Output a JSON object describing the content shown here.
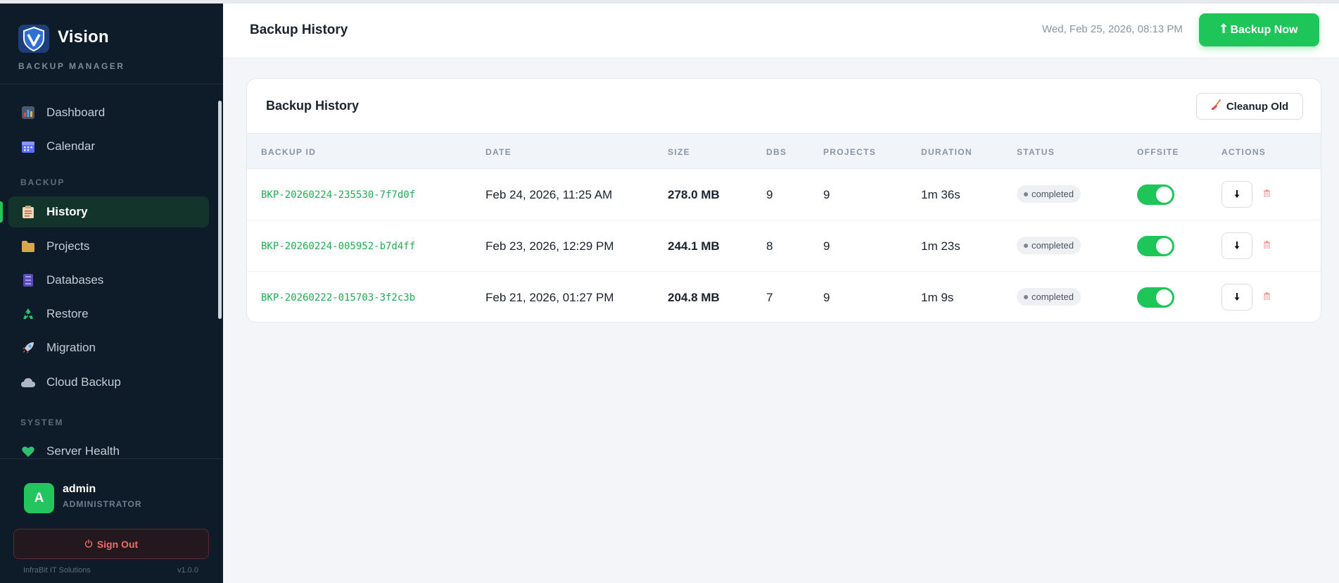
{
  "brand": {
    "name": "Vision",
    "subtitle": "BACKUP MANAGER",
    "logo_icon": "shield-v-icon"
  },
  "sidebar": {
    "items": [
      {
        "label": "Dashboard",
        "icon": "bar-chart-icon"
      },
      {
        "label": "Calendar",
        "icon": "calendar-icon"
      },
      {
        "label": "History",
        "icon": "clipboard-icon",
        "active": true
      },
      {
        "label": "Projects",
        "icon": "folder-icon"
      },
      {
        "label": "Databases",
        "icon": "database-icon"
      },
      {
        "label": "Restore",
        "icon": "recycle-icon"
      },
      {
        "label": "Migration",
        "icon": "rocket-icon"
      },
      {
        "label": "Cloud Backup",
        "icon": "cloud-icon"
      },
      {
        "label": "Server Health",
        "icon": "heart-icon"
      }
    ],
    "sections": {
      "backup": "BACKUP",
      "system": "SYSTEM"
    }
  },
  "user": {
    "initial": "A",
    "name": "admin",
    "role": "ADMINISTRATOR",
    "sign_out_label": "Sign Out"
  },
  "footer": {
    "company": "InfraBit IT Solutions",
    "version": "v1.0.0"
  },
  "header": {
    "title": "Backup History",
    "datetime": "Wed, Feb 25, 2026, 08:13 PM",
    "backup_now_label": "Backup Now"
  },
  "card": {
    "title": "Backup History",
    "cleanup_label": "Cleanup Old"
  },
  "table": {
    "columns": [
      "BACKUP ID",
      "DATE",
      "SIZE",
      "DBS",
      "PROJECTS",
      "DURATION",
      "STATUS",
      "OFFSITE",
      "ACTIONS"
    ],
    "rows": [
      {
        "id": "BKP-20260224-235530-7f7d0f",
        "date": "Feb 24, 2026, 11:25 AM",
        "size": "278.0 MB",
        "dbs": "9",
        "projects": "9",
        "duration": "1m 36s",
        "status": "completed",
        "offsite": true
      },
      {
        "id": "BKP-20260224-005952-b7d4ff",
        "date": "Feb 23, 2026, 12:29 PM",
        "size": "244.1 MB",
        "dbs": "8",
        "projects": "9",
        "duration": "1m 23s",
        "status": "completed",
        "offsite": true
      },
      {
        "id": "BKP-20260222-015703-3f2c3b",
        "date": "Feb 21, 2026, 01:27 PM",
        "size": "204.8 MB",
        "dbs": "7",
        "projects": "9",
        "duration": "1m 9s",
        "status": "completed",
        "offsite": true
      }
    ]
  },
  "colors": {
    "accent": "#1ec65a",
    "sidebar_bg": "#0e1b28",
    "danger": "#f06b6b"
  }
}
